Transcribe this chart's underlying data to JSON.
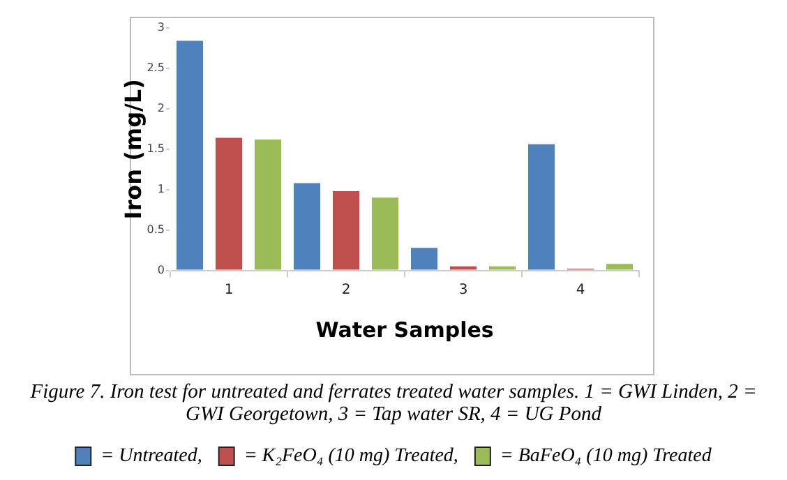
{
  "chart_data": {
    "type": "bar",
    "xlabel": "Water Samples",
    "ylabel": "Iron (mg/L)",
    "categories": [
      "1",
      "2",
      "3",
      "4"
    ],
    "series": [
      {
        "name": "= Untreated,",
        "color": "#4f81bd",
        "values": [
          2.84,
          1.08,
          0.28,
          1.56
        ]
      },
      {
        "name": "= K₂FeO₄ (10 mg) Treated,",
        "color": "#c0504d",
        "values": [
          1.64,
          0.98,
          0.05,
          0.02
        ]
      },
      {
        "name": "= BaFeO₄ (10 mg) Treated",
        "color": "#9bbb59",
        "values": [
          1.62,
          0.9,
          0.05,
          0.08
        ]
      }
    ],
    "ylim": [
      0,
      3
    ],
    "yticks": [
      0,
      0.5,
      1,
      1.5,
      2,
      2.5,
      3
    ],
    "grid": false,
    "legend": "bottom",
    "annotations": [
      "Figure 7. Iron test for untreated and ferrates treated water samples. 1 = GWI Linden, 2 = GWI Georgetown, 3 = Tap water SR, 4 = UG Pond"
    ]
  }
}
